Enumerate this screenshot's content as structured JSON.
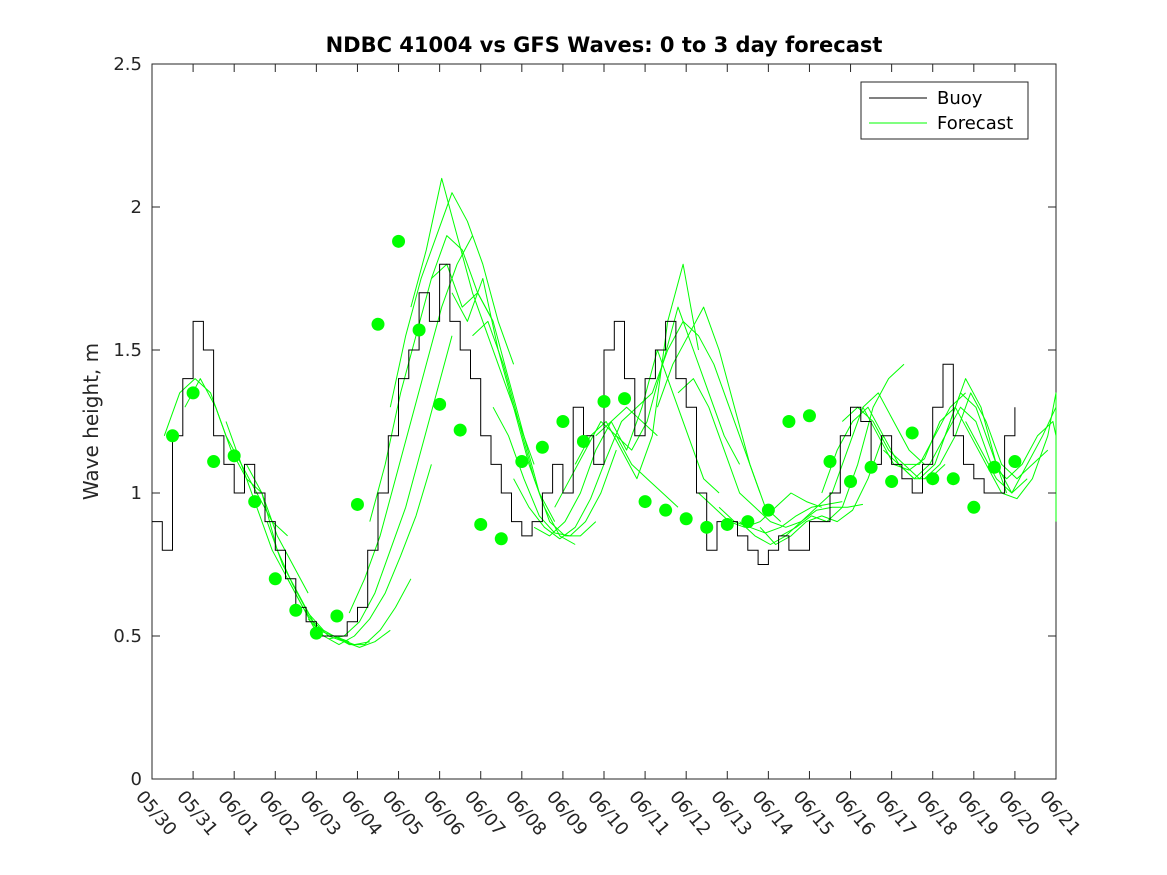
{
  "chart_data": {
    "type": "line",
    "title": "NDBC 41004 vs GFS Waves: 0 to 3 day forecast",
    "xlabel": "",
    "ylabel": "Wave height, m",
    "ylim": [
      0,
      2.5
    ],
    "yticks": [
      "0",
      "0.5",
      "1",
      "1.5",
      "2",
      "2.5"
    ],
    "xlim_days": [
      0,
      22
    ],
    "xtick_labels": [
      "05/30",
      "05/31",
      "06/01",
      "06/02",
      "06/03",
      "06/04",
      "06/05",
      "06/06",
      "06/07",
      "06/08",
      "06/09",
      "06/10",
      "06/11",
      "06/12",
      "06/13",
      "06/14",
      "06/15",
      "06/16",
      "06/17",
      "06/18",
      "06/19",
      "06/20",
      "06/21"
    ],
    "legend": {
      "location": "top-right",
      "entries": [
        {
          "name": "Buoy",
          "color": "#000000"
        },
        {
          "name": "Forecast",
          "color": "#00ff00"
        }
      ]
    },
    "colors": {
      "buoy": "#000000",
      "forecast": "#00ff00",
      "axes": "#262626"
    },
    "series": [
      {
        "name": "Buoy",
        "x": [
          0,
          0.25,
          0.5,
          0.75,
          1,
          1.25,
          1.5,
          1.75,
          2,
          2.25,
          2.5,
          2.75,
          3,
          3.25,
          3.5,
          3.75,
          4,
          4.25,
          4.5,
          4.75,
          5,
          5.25,
          5.5,
          5.75,
          6,
          6.25,
          6.5,
          6.75,
          7,
          7.25,
          7.5,
          7.75,
          8,
          8.25,
          8.5,
          8.75,
          9,
          9.25,
          9.5,
          9.75,
          10,
          10.25,
          10.5,
          10.75,
          11,
          11.25,
          11.5,
          11.75,
          12,
          12.25,
          12.5,
          12.75,
          13,
          13.25,
          13.5,
          13.75,
          14,
          14.25,
          14.5,
          14.75,
          15,
          15.25,
          15.5,
          15.75,
          16,
          16.25,
          16.5,
          16.75,
          17,
          17.25,
          17.5,
          17.75,
          18,
          18.25,
          18.5,
          18.75,
          19,
          19.25,
          19.5,
          19.75,
          20,
          20.25,
          20.5,
          20.75,
          21
        ],
        "values": [
          0.9,
          0.8,
          1.2,
          1.4,
          1.6,
          1.5,
          1.2,
          1.1,
          1.0,
          1.1,
          1.0,
          0.9,
          0.8,
          0.7,
          0.6,
          0.55,
          0.5,
          0.5,
          0.5,
          0.55,
          0.6,
          0.8,
          1.0,
          1.2,
          1.4,
          1.5,
          1.7,
          1.6,
          1.8,
          1.6,
          1.5,
          1.4,
          1.2,
          1.1,
          1.0,
          0.9,
          0.85,
          0.9,
          1.0,
          1.1,
          1.0,
          1.3,
          1.2,
          1.1,
          1.5,
          1.6,
          1.4,
          1.2,
          1.4,
          1.5,
          1.6,
          1.4,
          1.3,
          1.0,
          0.8,
          0.9,
          0.9,
          0.85,
          0.8,
          0.75,
          0.8,
          0.85,
          0.8,
          0.8,
          0.9,
          0.9,
          1.0,
          1.2,
          1.3,
          1.25,
          1.1,
          1.2,
          1.1,
          1.05,
          1.0,
          1.1,
          1.3,
          1.45,
          1.2,
          1.1,
          1.05,
          1.0,
          1.0,
          1.2,
          1.3
        ]
      }
    ],
    "forecast_runs": [
      {
        "x0": 0.3,
        "values": [
          1.2,
          1.35,
          1.4,
          1.35,
          1.2,
          1.1,
          1.0,
          0.9,
          0.85
        ]
      },
      {
        "x0": 0.8,
        "values": [
          1.3,
          1.4,
          1.3,
          1.15,
          1.05,
          1.0,
          0.85,
          0.75,
          0.65
        ]
      },
      {
        "x0": 1.8,
        "values": [
          1.25,
          1.1,
          0.95,
          0.8,
          0.7,
          0.6,
          0.5,
          0.5,
          0.48
        ]
      },
      {
        "x0": 2.3,
        "values": [
          1.1,
          1.0,
          0.8,
          0.68,
          0.58,
          0.52,
          0.49,
          0.47,
          0.48
        ]
      },
      {
        "x0": 2.8,
        "values": [
          0.9,
          0.75,
          0.65,
          0.55,
          0.5,
          0.48,
          0.46,
          0.48,
          0.52
        ]
      },
      {
        "x0": 3.3,
        "values": [
          0.7,
          0.6,
          0.52,
          0.5,
          0.47,
          0.47,
          0.52,
          0.6,
          0.7
        ]
      },
      {
        "x0": 3.8,
        "values": [
          0.56,
          0.5,
          0.47,
          0.5,
          0.56,
          0.65,
          0.78,
          0.92,
          1.1
        ]
      },
      {
        "x0": 4.3,
        "values": [
          0.49,
          0.5,
          0.55,
          0.65,
          0.8,
          0.95,
          1.15,
          1.35,
          1.55
        ]
      },
      {
        "x0": 4.8,
        "values": [
          0.58,
          0.7,
          0.85,
          1.05,
          1.25,
          1.45,
          1.65,
          1.8,
          1.9
        ]
      },
      {
        "x0": 5.3,
        "values": [
          0.9,
          1.1,
          1.35,
          1.55,
          1.75,
          1.9,
          1.85,
          1.7,
          1.6
        ]
      },
      {
        "x0": 5.8,
        "values": [
          1.3,
          1.55,
          1.75,
          1.9,
          2.05,
          1.95,
          1.8,
          1.6,
          1.45
        ]
      },
      {
        "x0": 6.3,
        "values": [
          1.65,
          1.85,
          2.1,
          1.9,
          1.7,
          1.55,
          1.4,
          1.25,
          1.1
        ]
      },
      {
        "x0": 6.8,
        "values": [
          1.75,
          1.8,
          1.65,
          1.7,
          1.6,
          1.4,
          1.2,
          1.0,
          0.9
        ]
      },
      {
        "x0": 7.3,
        "values": [
          1.7,
          1.6,
          1.75,
          1.5,
          1.3,
          1.1,
          0.95,
          0.85,
          0.82
        ]
      },
      {
        "x0": 7.8,
        "values": [
          1.55,
          1.6,
          1.45,
          1.25,
          1.05,
          0.9,
          0.85,
          0.85,
          0.9
        ]
      },
      {
        "x0": 8.3,
        "values": [
          1.3,
          1.2,
          1.05,
          0.92,
          0.86,
          0.85,
          0.9,
          1.0,
          1.15
        ]
      },
      {
        "x0": 8.8,
        "values": [
          1.05,
          0.95,
          0.88,
          0.84,
          0.88,
          0.98,
          1.12,
          1.25,
          1.3
        ]
      },
      {
        "x0": 9.3,
        "values": [
          0.88,
          0.85,
          0.9,
          1.0,
          1.15,
          1.25,
          1.3,
          1.25,
          1.2
        ]
      },
      {
        "x0": 9.8,
        "values": [
          0.95,
          1.05,
          1.15,
          1.25,
          1.2,
          1.1,
          1.05,
          1.0,
          0.95
        ]
      },
      {
        "x0": 10.3,
        "values": [
          1.1,
          1.2,
          1.25,
          1.15,
          1.05,
          1.2,
          1.6,
          1.8,
          1.5
        ]
      },
      {
        "x0": 10.8,
        "values": [
          1.2,
          1.25,
          1.15,
          1.3,
          1.5,
          1.35,
          1.2,
          1.05,
          1.0
        ]
      },
      {
        "x0": 11.3,
        "values": [
          1.2,
          1.15,
          1.25,
          1.45,
          1.65,
          1.5,
          1.35,
          1.2,
          1.1
        ]
      },
      {
        "x0": 11.8,
        "values": [
          1.3,
          1.35,
          1.5,
          1.6,
          1.55,
          1.45,
          1.3,
          1.15,
          1.0
        ]
      },
      {
        "x0": 12.3,
        "values": [
          1.3,
          1.45,
          1.55,
          1.65,
          1.5,
          1.3,
          1.1,
          0.95,
          0.9
        ]
      },
      {
        "x0": 12.8,
        "values": [
          1.35,
          1.4,
          1.3,
          1.15,
          1.0,
          0.95,
          0.9,
          0.88,
          0.9
        ]
      },
      {
        "x0": 13.3,
        "values": [
          1.0,
          0.95,
          0.9,
          0.88,
          0.9,
          0.95,
          1.0,
          0.97,
          0.95
        ]
      },
      {
        "x0": 13.8,
        "values": [
          0.95,
          0.9,
          0.88,
          0.86,
          0.88,
          0.92,
          0.95,
          0.96,
          0.97
        ]
      },
      {
        "x0": 14.3,
        "values": [
          0.9,
          0.85,
          0.82,
          0.85,
          0.9,
          0.94,
          0.95,
          0.95,
          0.96
        ]
      },
      {
        "x0": 14.8,
        "values": [
          0.88,
          0.82,
          0.85,
          0.9,
          0.92,
          0.9,
          0.94,
          1.05,
          1.2
        ]
      },
      {
        "x0": 15.3,
        "values": [
          0.85,
          0.88,
          0.92,
          0.9,
          0.95,
          1.1,
          1.3,
          1.4,
          1.45
        ]
      },
      {
        "x0": 15.8,
        "values": [
          0.9,
          0.95,
          1.0,
          1.15,
          1.3,
          1.35,
          1.25,
          1.15,
          1.1
        ]
      },
      {
        "x0": 16.3,
        "values": [
          1.0,
          1.15,
          1.25,
          1.3,
          1.2,
          1.1,
          1.05,
          1.05,
          1.1
        ]
      },
      {
        "x0": 16.8,
        "values": [
          1.25,
          1.3,
          1.25,
          1.15,
          1.1,
          1.1,
          1.2,
          1.3,
          1.35
        ]
      },
      {
        "x0": 17.3,
        "values": [
          1.3,
          1.2,
          1.1,
          1.08,
          1.12,
          1.25,
          1.3,
          1.2,
          1.1
        ]
      },
      {
        "x0": 17.8,
        "values": [
          1.15,
          1.1,
          1.05,
          1.1,
          1.2,
          1.35,
          1.3,
          1.15,
          1.0
        ]
      },
      {
        "x0": 18.3,
        "values": [
          1.1,
          1.05,
          1.1,
          1.25,
          1.4,
          1.3,
          1.1,
          1.0,
          1.05
        ]
      },
      {
        "x0": 18.8,
        "values": [
          1.05,
          1.1,
          1.2,
          1.35,
          1.25,
          1.1,
          1.05,
          1.1,
          1.15
        ]
      },
      {
        "x0": 19.3,
        "values": [
          1.2,
          1.3,
          1.25,
          1.1,
          1.05,
          1.1,
          1.2,
          1.25,
          1.2
        ]
      },
      {
        "x0": 19.8,
        "values": [
          1.25,
          1.15,
          1.05,
          1.0,
          1.1,
          1.2,
          1.3,
          1.2,
          1.05
        ]
      },
      {
        "x0": 20.3,
        "values": [
          1.1,
          1.0,
          0.98,
          1.05,
          1.2,
          1.35,
          1.2,
          1.0,
          0.9
        ]
      }
    ],
    "forecast_markers": {
      "x": [
        0.5,
        1,
        1.5,
        2,
        2.5,
        3,
        3.5,
        4,
        4.5,
        5,
        5.5,
        6,
        6.5,
        7,
        7.5,
        8,
        8.5,
        9,
        9.5,
        10,
        10.5,
        11,
        11.5,
        12,
        12.5,
        13,
        13.5,
        14,
        14.5,
        15,
        15.5,
        16,
        16.5,
        17,
        17.5,
        18,
        18.5,
        19,
        19.5,
        20,
        20.5,
        21
      ],
      "values": [
        1.2,
        1.35,
        1.11,
        1.13,
        0.97,
        0.7,
        0.59,
        0.51,
        0.57,
        0.96,
        1.59,
        1.88,
        1.57,
        1.31,
        1.22,
        0.89,
        0.84,
        1.11,
        1.16,
        1.25,
        1.18,
        1.32,
        1.33,
        0.97,
        0.94,
        0.91,
        0.88,
        0.89,
        0.9,
        0.94,
        1.25,
        1.27,
        1.11,
        1.04,
        1.09,
        1.04,
        1.21,
        1.05,
        1.05,
        0.95,
        1.09,
        1.11
      ]
    }
  }
}
